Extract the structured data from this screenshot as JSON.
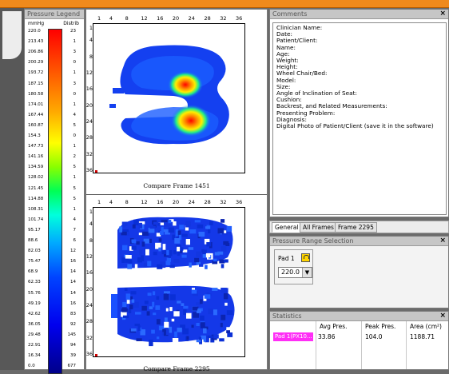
{
  "legend": {
    "title": "Pressure Legend",
    "unit_pressure": "mmHg",
    "unit_dist": "Distrib",
    "rows": [
      {
        "p": "220.0",
        "d": "23"
      },
      {
        "p": "213.43",
        "d": "1"
      },
      {
        "p": "206.86",
        "d": "3"
      },
      {
        "p": "200.29",
        "d": "0"
      },
      {
        "p": "193.72",
        "d": "1"
      },
      {
        "p": "187.15",
        "d": "3"
      },
      {
        "p": "180.58",
        "d": "0"
      },
      {
        "p": "174.01",
        "d": "1"
      },
      {
        "p": "167.44",
        "d": "4"
      },
      {
        "p": "160.87",
        "d": "5"
      },
      {
        "p": "154.3",
        "d": "0"
      },
      {
        "p": "147.73",
        "d": "1"
      },
      {
        "p": "141.16",
        "d": "2"
      },
      {
        "p": "134.59",
        "d": "5"
      },
      {
        "p": "128.02",
        "d": "1"
      },
      {
        "p": "121.45",
        "d": "5"
      },
      {
        "p": "114.88",
        "d": "5"
      },
      {
        "p": "108.31",
        "d": "1"
      },
      {
        "p": "101.74",
        "d": "4"
      },
      {
        "p": "95.17",
        "d": "7"
      },
      {
        "p": "88.6",
        "d": "6"
      },
      {
        "p": "82.03",
        "d": "12"
      },
      {
        "p": "75.47",
        "d": "16"
      },
      {
        "p": "68.9",
        "d": "14"
      },
      {
        "p": "62.33",
        "d": "14"
      },
      {
        "p": "55.76",
        "d": "14"
      },
      {
        "p": "49.19",
        "d": "16"
      },
      {
        "p": "42.62",
        "d": "83"
      },
      {
        "p": "36.05",
        "d": "92"
      },
      {
        "p": "29.48",
        "d": "145"
      },
      {
        "p": "22.91",
        "d": "94"
      },
      {
        "p": "16.34",
        "d": "39"
      },
      {
        "p": "0.0",
        "d": "677"
      }
    ]
  },
  "frames": {
    "x_ticks": [
      "1",
      "4",
      "8",
      "12",
      "16",
      "20",
      "24",
      "28",
      "32",
      "36"
    ],
    "y_ticks": [
      "1",
      "4",
      "8",
      "12",
      "16",
      "20",
      "24",
      "28",
      "32",
      "36"
    ],
    "top_caption": "Compare Frame 1451",
    "bottom_caption": "Compare Frame 2295"
  },
  "comments": {
    "title": "Comments",
    "lines": [
      "Clinician Name:",
      "Date:",
      "Patient/Client:",
      "Name:",
      "Age:",
      "Weight:",
      "Height:",
      "Wheel Chair/Bed:",
      "Model:",
      "Size:",
      "Angle of Inclination of Seat:",
      "Cushion:",
      "Backrest, and Related Measurements:",
      "Presenting Problem:",
      "Diagnosis:",
      "Digital Photo of Patient/Client (save it in the software)"
    ]
  },
  "tabs": [
    {
      "label": "General",
      "active": true
    },
    {
      "label": "All Frames",
      "active": false
    },
    {
      "label": "Frame 2295",
      "active": false
    }
  ],
  "range": {
    "title": "Pressure Range Selection",
    "pad_label": "Pad 1",
    "value": "220.0"
  },
  "stats": {
    "title": "Statistics",
    "headers": [
      "Avg Pres.",
      "Peak Pres.",
      "Area (cm²)"
    ],
    "row": {
      "pad": "Pad 1(PX10...",
      "avg": "33.86",
      "peak": "104.0",
      "area": "1188.71"
    }
  },
  "colors": {
    "accent_orange": "#f08a1c",
    "pad_highlight": "#ff2ef6"
  }
}
